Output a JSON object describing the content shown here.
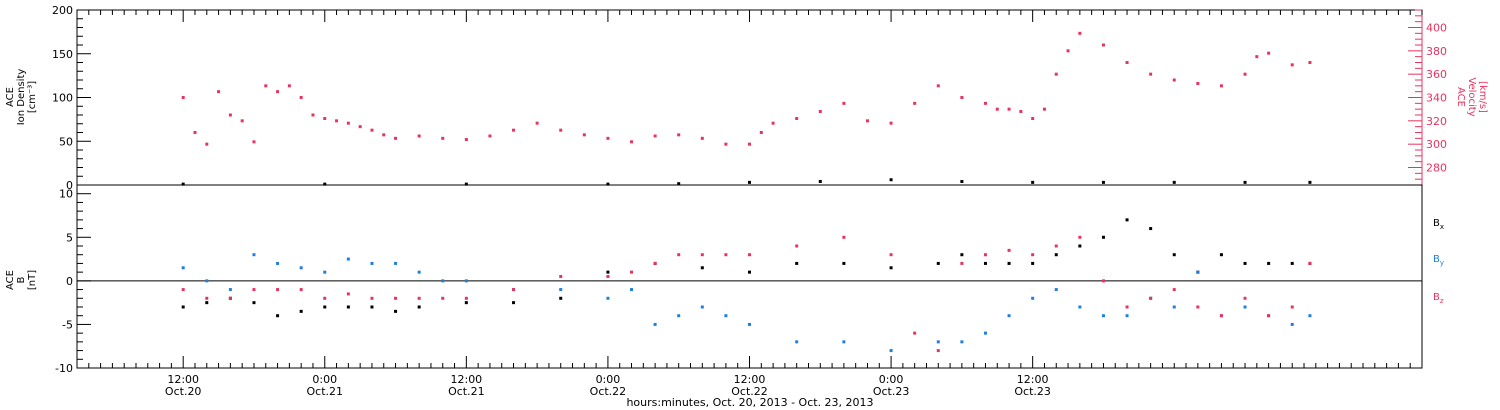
{
  "chart_data": [
    {
      "type": "scatter",
      "panel": "top",
      "left_axis": {
        "label_lines": [
          "ACE",
          "Ion Density",
          "[cm⁻³]"
        ],
        "ylim": [
          0,
          200
        ],
        "ticks": [
          0,
          50,
          100,
          150,
          200
        ],
        "tick_labels": [
          "0",
          "50",
          "100",
          "150",
          "200"
        ]
      },
      "right_axis": {
        "label_lines": [
          "ACE",
          "Velocity",
          "[km/s]"
        ],
        "ylim": [
          265,
          415
        ],
        "ticks": [
          280,
          300,
          320,
          340,
          360,
          380,
          400
        ],
        "tick_labels": [
          "280",
          "300",
          "320",
          "340",
          "360",
          "380",
          "400"
        ]
      },
      "series": [
        {
          "axis": "left",
          "color": "#000000",
          "x_hours": [
            0,
            12,
            24,
            36,
            42,
            48,
            54,
            60,
            66,
            72,
            78,
            84,
            90,
            95.5
          ],
          "values": [
            1,
            1,
            1,
            1,
            1.5,
            3,
            4,
            6,
            4,
            3,
            3,
            3,
            3,
            3
          ]
        },
        {
          "axis": "right",
          "color": "#e8335f",
          "x_hours": [
            0,
            1,
            2,
            3,
            4,
            5,
            6,
            7,
            8,
            9,
            10,
            11,
            12,
            13,
            14,
            15,
            16,
            17,
            18,
            20,
            22,
            24,
            26,
            28,
            30,
            32,
            34,
            36,
            38,
            40,
            42,
            44,
            46,
            48,
            49,
            50,
            52,
            54,
            56,
            58,
            60,
            62,
            64,
            66,
            68,
            69,
            70,
            71,
            72,
            73,
            74,
            75,
            76,
            78,
            80,
            82,
            84,
            86,
            88,
            90,
            91,
            92,
            94,
            95.5
          ],
          "values": [
            340,
            310,
            300,
            345,
            325,
            320,
            302,
            350,
            345,
            350,
            340,
            325,
            322,
            320,
            318,
            315,
            312,
            308,
            305,
            307,
            305,
            304,
            307,
            312,
            318,
            312,
            308,
            305,
            302,
            307,
            308,
            305,
            300,
            300,
            310,
            318,
            322,
            328,
            335,
            320,
            318,
            335,
            350,
            340,
            335,
            330,
            330,
            328,
            322,
            330,
            360,
            380,
            395,
            385,
            370,
            360,
            355,
            352,
            350,
            360,
            375,
            378,
            368,
            370
          ]
        }
      ]
    },
    {
      "type": "scatter",
      "panel": "bottom",
      "left_axis": {
        "label_lines": [
          "ACE",
          "B",
          "[nT]"
        ],
        "ylim": [
          -10,
          11
        ],
        "ticks": [
          -10,
          -5,
          0,
          5,
          10
        ],
        "tick_labels": [
          "-10",
          "-5",
          "0",
          "5",
          "10"
        ]
      },
      "series": [
        {
          "name": "Bx",
          "color": "#000000",
          "x_hours": [
            0,
            2,
            4,
            6,
            8,
            10,
            12,
            14,
            16,
            18,
            20,
            24,
            28,
            32,
            36,
            40,
            44,
            48,
            52,
            56,
            60,
            64,
            66,
            68,
            70,
            72,
            74,
            76,
            78,
            80,
            82,
            84,
            86,
            88,
            90,
            92,
            94,
            95.5
          ],
          "values": [
            -3,
            -2.5,
            -2,
            -2.5,
            -4,
            -3.5,
            -3,
            -3,
            -3,
            -3.5,
            -3,
            -2.5,
            -2.5,
            -2,
            1,
            2,
            1.5,
            1,
            2,
            2,
            1.5,
            2,
            3,
            2,
            2,
            2,
            3,
            4,
            5,
            7,
            6,
            3,
            1,
            3,
            2,
            2,
            2,
            2
          ]
        },
        {
          "name": "By",
          "color": "#1f7fdd",
          "x_hours": [
            0,
            2,
            4,
            6,
            8,
            10,
            12,
            14,
            16,
            18,
            20,
            22,
            24,
            28,
            32,
            36,
            38,
            40,
            42,
            44,
            46,
            48,
            52,
            56,
            60,
            64,
            66,
            68,
            70,
            72,
            74,
            76,
            78,
            80,
            82,
            84,
            86,
            88,
            90,
            92,
            94,
            95.5
          ],
          "values": [
            1.5,
            0,
            -1,
            3,
            2,
            1.5,
            1,
            2.5,
            2,
            2,
            1,
            0,
            0,
            -1,
            -1,
            -2,
            -1,
            -5,
            -4,
            -3,
            -4,
            -5,
            -7,
            -7,
            -8,
            -7,
            -7,
            -6,
            -4,
            -2,
            -1,
            -3,
            -4,
            -4,
            -2,
            -3,
            1,
            -4,
            -3,
            -4,
            -5,
            -4
          ]
        },
        {
          "name": "Bz",
          "color": "#e8335f",
          "x_hours": [
            0,
            2,
            4,
            6,
            8,
            10,
            12,
            14,
            16,
            18,
            20,
            22,
            24,
            28,
            32,
            36,
            38,
            40,
            42,
            44,
            46,
            48,
            52,
            56,
            60,
            62,
            64,
            66,
            68,
            70,
            72,
            74,
            76,
            78,
            80,
            82,
            84,
            86,
            88,
            90,
            92,
            94,
            95.5
          ],
          "values": [
            -1,
            -2,
            -2,
            -1,
            -1,
            -1,
            -2,
            -1.5,
            -2,
            -2,
            -2,
            -2,
            -2,
            -1,
            0.5,
            0.5,
            1,
            2,
            3,
            3,
            3,
            3,
            4,
            5,
            3,
            -6,
            -8,
            2,
            3,
            3.5,
            3,
            4,
            5,
            0,
            -3,
            -2,
            -1,
            -3,
            -4,
            -2,
            -4,
            -3,
            2
          ]
        }
      ],
      "legend": [
        {
          "label": "B",
          "sub": "x",
          "color": "#000000"
        },
        {
          "label": "B",
          "sub": "y",
          "color": "#1f7fdd"
        },
        {
          "label": "B",
          "sub": "z",
          "color": "#e8335f"
        }
      ]
    }
  ],
  "x_axis": {
    "xlim_hours": [
      -9,
      105
    ],
    "ticks": [
      {
        "hour": 0,
        "time": "12:00",
        "date": "Oct.20"
      },
      {
        "hour": 12,
        "time": "0:00",
        "date": "Oct.21"
      },
      {
        "hour": 24,
        "time": "12:00",
        "date": "Oct.21"
      },
      {
        "hour": 36,
        "time": "0:00",
        "date": "Oct.22"
      },
      {
        "hour": 48,
        "time": "12:00",
        "date": "Oct.22"
      },
      {
        "hour": 60,
        "time": "0:00",
        "date": "Oct.23"
      },
      {
        "hour": 72,
        "time": "12:00",
        "date": "Oct.23"
      }
    ],
    "label": "hours:minutes, Oct. 20, 2013 - Oct. 23, 2013"
  }
}
